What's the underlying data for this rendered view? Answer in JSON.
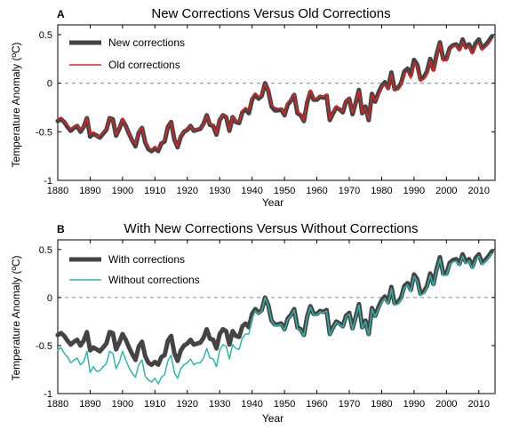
{
  "chart_data": [
    {
      "type": "line",
      "panel_letter": "A",
      "title": "New Corrections Versus Old Corrections",
      "xlabel": "Year",
      "ylabel": "Temperature Anomaly (ºC)",
      "xlim": [
        1880,
        2015
      ],
      "ylim": [
        -1,
        0.6
      ],
      "xticks": [
        1880,
        1890,
        1900,
        1910,
        1920,
        1930,
        1940,
        1950,
        1960,
        1970,
        1980,
        1990,
        2000,
        2010
      ],
      "yticks": [
        -1,
        -0.5,
        0,
        0.5
      ],
      "ytick_labels": [
        "-1",
        "-0.5",
        "0",
        "0.5"
      ],
      "zero_line": "dashed",
      "grid": false,
      "legend_position": "top-left",
      "x": [
        1880,
        1881,
        1882,
        1883,
        1884,
        1885,
        1886,
        1887,
        1888,
        1889,
        1890,
        1891,
        1892,
        1893,
        1894,
        1895,
        1896,
        1897,
        1898,
        1899,
        1900,
        1901,
        1902,
        1903,
        1904,
        1905,
        1906,
        1907,
        1908,
        1909,
        1910,
        1911,
        1912,
        1913,
        1914,
        1915,
        1916,
        1917,
        1918,
        1919,
        1920,
        1921,
        1922,
        1923,
        1924,
        1925,
        1926,
        1927,
        1928,
        1929,
        1930,
        1931,
        1932,
        1933,
        1934,
        1935,
        1936,
        1937,
        1938,
        1939,
        1940,
        1941,
        1942,
        1943,
        1944,
        1945,
        1946,
        1947,
        1948,
        1949,
        1950,
        1951,
        1952,
        1953,
        1954,
        1955,
        1956,
        1957,
        1958,
        1959,
        1960,
        1961,
        1962,
        1963,
        1964,
        1965,
        1966,
        1967,
        1968,
        1969,
        1970,
        1971,
        1972,
        1973,
        1974,
        1975,
        1976,
        1977,
        1978,
        1979,
        1980,
        1981,
        1982,
        1983,
        1984,
        1985,
        1986,
        1987,
        1988,
        1989,
        1990,
        1991,
        1992,
        1993,
        1994,
        1995,
        1996,
        1997,
        1998,
        1999,
        2000,
        2001,
        2002,
        2003,
        2004,
        2005,
        2006,
        2007,
        2008,
        2009,
        2010,
        2011,
        2012,
        2013,
        2014
      ],
      "series": [
        {
          "name": "New corrections",
          "color": "#444444",
          "values": [
            -0.39,
            -0.37,
            -0.4,
            -0.45,
            -0.49,
            -0.46,
            -0.44,
            -0.5,
            -0.45,
            -0.36,
            -0.55,
            -0.52,
            -0.54,
            -0.56,
            -0.52,
            -0.48,
            -0.36,
            -0.37,
            -0.54,
            -0.47,
            -0.38,
            -0.44,
            -0.52,
            -0.59,
            -0.65,
            -0.51,
            -0.46,
            -0.61,
            -0.68,
            -0.7,
            -0.67,
            -0.7,
            -0.62,
            -0.6,
            -0.45,
            -0.4,
            -0.58,
            -0.66,
            -0.55,
            -0.5,
            -0.48,
            -0.44,
            -0.49,
            -0.48,
            -0.47,
            -0.42,
            -0.33,
            -0.43,
            -0.44,
            -0.53,
            -0.38,
            -0.33,
            -0.35,
            -0.49,
            -0.35,
            -0.4,
            -0.41,
            -0.3,
            -0.27,
            -0.31,
            -0.17,
            -0.12,
            -0.16,
            -0.13,
            0.0,
            -0.08,
            -0.24,
            -0.28,
            -0.28,
            -0.27,
            -0.33,
            -0.22,
            -0.18,
            -0.12,
            -0.31,
            -0.33,
            -0.39,
            -0.2,
            -0.09,
            -0.17,
            -0.17,
            -0.14,
            -0.15,
            -0.13,
            -0.38,
            -0.31,
            -0.25,
            -0.27,
            -0.3,
            -0.19,
            -0.16,
            -0.32,
            -0.2,
            -0.07,
            -0.31,
            -0.24,
            -0.38,
            -0.11,
            -0.19,
            -0.1,
            -0.03,
            0.01,
            -0.05,
            0.11,
            -0.06,
            -0.05,
            0.0,
            0.12,
            0.15,
            0.08,
            0.24,
            0.19,
            0.04,
            0.06,
            0.12,
            0.25,
            0.14,
            0.3,
            0.42,
            0.25,
            0.25,
            0.36,
            0.39,
            0.4,
            0.35,
            0.45,
            0.37,
            0.4,
            0.32,
            0.41,
            0.45,
            0.36,
            0.39,
            0.43,
            0.48
          ]
        },
        {
          "name": "Old corrections",
          "color": "#e8201e",
          "values": [
            -0.37,
            -0.35,
            -0.4,
            -0.43,
            -0.47,
            -0.45,
            -0.43,
            -0.48,
            -0.45,
            -0.36,
            -0.53,
            -0.5,
            -0.55,
            -0.54,
            -0.51,
            -0.47,
            -0.36,
            -0.38,
            -0.53,
            -0.46,
            -0.36,
            -0.44,
            -0.52,
            -0.59,
            -0.62,
            -0.5,
            -0.45,
            -0.6,
            -0.66,
            -0.68,
            -0.65,
            -0.68,
            -0.62,
            -0.58,
            -0.45,
            -0.4,
            -0.57,
            -0.65,
            -0.54,
            -0.5,
            -0.47,
            -0.44,
            -0.49,
            -0.47,
            -0.46,
            -0.43,
            -0.33,
            -0.42,
            -0.43,
            -0.52,
            -0.37,
            -0.33,
            -0.34,
            -0.48,
            -0.34,
            -0.39,
            -0.4,
            -0.28,
            -0.25,
            -0.27,
            -0.15,
            -0.1,
            -0.14,
            -0.12,
            0.0,
            -0.07,
            -0.22,
            -0.25,
            -0.26,
            -0.26,
            -0.32,
            -0.2,
            -0.17,
            -0.11,
            -0.3,
            -0.31,
            -0.38,
            -0.18,
            -0.07,
            -0.16,
            -0.16,
            -0.13,
            -0.14,
            -0.11,
            -0.37,
            -0.3,
            -0.23,
            -0.26,
            -0.29,
            -0.18,
            -0.15,
            -0.3,
            -0.2,
            -0.08,
            -0.31,
            -0.25,
            -0.37,
            -0.12,
            -0.18,
            -0.12,
            -0.04,
            -0.01,
            -0.07,
            0.09,
            -0.08,
            -0.07,
            -0.02,
            0.1,
            0.12,
            0.05,
            0.21,
            0.17,
            0.02,
            0.04,
            0.1,
            0.23,
            0.12,
            0.28,
            0.41,
            0.23,
            0.23,
            0.35,
            0.38,
            0.39,
            0.33,
            0.43,
            0.35,
            0.38,
            0.3,
            0.38,
            0.42,
            0.34,
            0.37,
            0.4,
            0.45
          ]
        }
      ]
    },
    {
      "type": "line",
      "panel_letter": "B",
      "title": "With New Corrections Versus Without Corrections",
      "xlabel": "Year",
      "ylabel": "Temperature Anomaly (ºC)",
      "xlim": [
        1880,
        2015
      ],
      "ylim": [
        -1,
        0.6
      ],
      "xticks": [
        1880,
        1890,
        1900,
        1910,
        1920,
        1930,
        1940,
        1950,
        1960,
        1970,
        1980,
        1990,
        2000,
        2010
      ],
      "yticks": [
        -1,
        -0.5,
        0,
        0.5
      ],
      "ytick_labels": [
        "-1",
        "-0.5",
        "0",
        "0.5"
      ],
      "zero_line": "dashed",
      "grid": false,
      "legend_position": "top-left",
      "x": [
        1880,
        1881,
        1882,
        1883,
        1884,
        1885,
        1886,
        1887,
        1888,
        1889,
        1890,
        1891,
        1892,
        1893,
        1894,
        1895,
        1896,
        1897,
        1898,
        1899,
        1900,
        1901,
        1902,
        1903,
        1904,
        1905,
        1906,
        1907,
        1908,
        1909,
        1910,
        1911,
        1912,
        1913,
        1914,
        1915,
        1916,
        1917,
        1918,
        1919,
        1920,
        1921,
        1922,
        1923,
        1924,
        1925,
        1926,
        1927,
        1928,
        1929,
        1930,
        1931,
        1932,
        1933,
        1934,
        1935,
        1936,
        1937,
        1938,
        1939,
        1940,
        1941,
        1942,
        1943,
        1944,
        1945,
        1946,
        1947,
        1948,
        1949,
        1950,
        1951,
        1952,
        1953,
        1954,
        1955,
        1956,
        1957,
        1958,
        1959,
        1960,
        1961,
        1962,
        1963,
        1964,
        1965,
        1966,
        1967,
        1968,
        1969,
        1970,
        1971,
        1972,
        1973,
        1974,
        1975,
        1976,
        1977,
        1978,
        1979,
        1980,
        1981,
        1982,
        1983,
        1984,
        1985,
        1986,
        1987,
        1988,
        1989,
        1990,
        1991,
        1992,
        1993,
        1994,
        1995,
        1996,
        1997,
        1998,
        1999,
        2000,
        2001,
        2002,
        2003,
        2004,
        2005,
        2006,
        2007,
        2008,
        2009,
        2010,
        2011,
        2012,
        2013,
        2014
      ],
      "series": [
        {
          "name": "With corrections",
          "color": "#444444",
          "values": [
            -0.39,
            -0.37,
            -0.4,
            -0.45,
            -0.49,
            -0.46,
            -0.44,
            -0.5,
            -0.45,
            -0.36,
            -0.55,
            -0.52,
            -0.54,
            -0.56,
            -0.52,
            -0.48,
            -0.36,
            -0.37,
            -0.54,
            -0.47,
            -0.38,
            -0.44,
            -0.52,
            -0.59,
            -0.65,
            -0.51,
            -0.46,
            -0.61,
            -0.68,
            -0.7,
            -0.67,
            -0.7,
            -0.62,
            -0.6,
            -0.45,
            -0.4,
            -0.58,
            -0.66,
            -0.55,
            -0.5,
            -0.48,
            -0.44,
            -0.49,
            -0.48,
            -0.47,
            -0.42,
            -0.33,
            -0.43,
            -0.44,
            -0.53,
            -0.38,
            -0.33,
            -0.35,
            -0.49,
            -0.35,
            -0.4,
            -0.41,
            -0.3,
            -0.27,
            -0.31,
            -0.17,
            -0.12,
            -0.16,
            -0.13,
            0.0,
            -0.08,
            -0.24,
            -0.28,
            -0.28,
            -0.27,
            -0.33,
            -0.22,
            -0.18,
            -0.12,
            -0.31,
            -0.33,
            -0.39,
            -0.2,
            -0.09,
            -0.17,
            -0.17,
            -0.14,
            -0.15,
            -0.13,
            -0.38,
            -0.31,
            -0.25,
            -0.27,
            -0.3,
            -0.19,
            -0.16,
            -0.32,
            -0.2,
            -0.07,
            -0.31,
            -0.24,
            -0.38,
            -0.11,
            -0.19,
            -0.1,
            -0.03,
            0.01,
            -0.05,
            0.11,
            -0.06,
            -0.05,
            0.0,
            0.12,
            0.15,
            0.08,
            0.24,
            0.19,
            0.04,
            0.06,
            0.12,
            0.25,
            0.14,
            0.3,
            0.42,
            0.25,
            0.25,
            0.36,
            0.39,
            0.4,
            0.35,
            0.45,
            0.37,
            0.4,
            0.32,
            0.41,
            0.45,
            0.36,
            0.39,
            0.43,
            0.48
          ]
        },
        {
          "name": "Without corrections",
          "color": "#2fb6a8",
          "values": [
            -0.55,
            -0.52,
            -0.58,
            -0.62,
            -0.68,
            -0.65,
            -0.63,
            -0.7,
            -0.67,
            -0.56,
            -0.78,
            -0.72,
            -0.77,
            -0.76,
            -0.72,
            -0.69,
            -0.56,
            -0.58,
            -0.74,
            -0.67,
            -0.56,
            -0.65,
            -0.73,
            -0.79,
            -0.83,
            -0.7,
            -0.65,
            -0.82,
            -0.86,
            -0.88,
            -0.84,
            -0.9,
            -0.83,
            -0.8,
            -0.66,
            -0.6,
            -0.78,
            -0.84,
            -0.74,
            -0.7,
            -0.68,
            -0.64,
            -0.7,
            -0.68,
            -0.68,
            -0.63,
            -0.53,
            -0.63,
            -0.64,
            -0.72,
            -0.55,
            -0.49,
            -0.51,
            -0.64,
            -0.49,
            -0.53,
            -0.54,
            -0.42,
            -0.38,
            -0.38,
            -0.22,
            -0.14,
            -0.17,
            -0.14,
            0.0,
            -0.08,
            -0.24,
            -0.29,
            -0.29,
            -0.28,
            -0.34,
            -0.23,
            -0.19,
            -0.13,
            -0.32,
            -0.34,
            -0.4,
            -0.21,
            -0.1,
            -0.18,
            -0.18,
            -0.15,
            -0.16,
            -0.14,
            -0.39,
            -0.32,
            -0.26,
            -0.28,
            -0.31,
            -0.2,
            -0.17,
            -0.33,
            -0.21,
            -0.08,
            -0.32,
            -0.25,
            -0.39,
            -0.12,
            -0.2,
            -0.12,
            -0.05,
            -0.01,
            -0.07,
            0.09,
            -0.08,
            -0.07,
            -0.02,
            0.1,
            0.13,
            0.06,
            0.22,
            0.17,
            0.02,
            0.04,
            0.1,
            0.23,
            0.12,
            0.28,
            0.4,
            0.23,
            0.23,
            0.34,
            0.37,
            0.38,
            0.33,
            0.43,
            0.35,
            0.38,
            0.3,
            0.39,
            0.43,
            0.34,
            0.37,
            0.41,
            0.46
          ]
        }
      ]
    }
  ]
}
